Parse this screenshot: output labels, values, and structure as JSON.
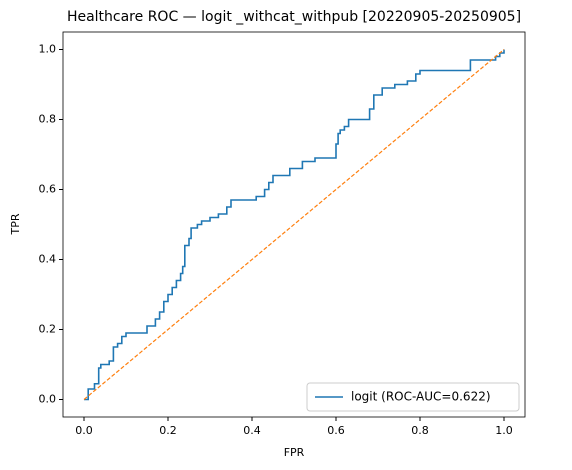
{
  "chart_data": {
    "type": "line",
    "title": "Healthcare ROC — logit _withcat_withpub [20220905-20250905]",
    "x_label": "FPR",
    "y_label": "TPR",
    "xlim": [
      -0.05,
      1.05
    ],
    "ylim": [
      -0.05,
      1.05
    ],
    "xticks": [
      {
        "value": 0,
        "label": "0.0"
      },
      0.2,
      0.4,
      0.6,
      0.8,
      {
        "value": 1,
        "label": "1.0"
      }
    ],
    "yticks": [
      {
        "value": 0,
        "label": "0.0"
      },
      0.2,
      0.4,
      0.6,
      0.8,
      {
        "value": 1,
        "label": "1.0"
      }
    ],
    "legend": "lower right",
    "series": [
      {
        "name": "logit (ROC-AUC=0.622)",
        "color": "#1f77b4",
        "x": [
          0,
          0.01,
          0.01,
          0.025,
          0.025,
          0.035,
          0.035,
          0.04,
          0.04,
          0.06,
          0.06,
          0.07,
          0.07,
          0.08,
          0.08,
          0.09,
          0.09,
          0.1,
          0.1,
          0.15,
          0.15,
          0.17,
          0.17,
          0.18,
          0.18,
          0.19,
          0.19,
          0.2,
          0.2,
          0.21,
          0.21,
          0.22,
          0.22,
          0.23,
          0.23,
          0.235,
          0.235,
          0.24,
          0.24,
          0.25,
          0.25,
          0.255,
          0.255,
          0.27,
          0.27,
          0.28,
          0.28,
          0.3,
          0.3,
          0.32,
          0.32,
          0.34,
          0.34,
          0.35,
          0.35,
          0.41,
          0.41,
          0.43,
          0.43,
          0.44,
          0.44,
          0.45,
          0.45,
          0.49,
          0.49,
          0.52,
          0.52,
          0.55,
          0.55,
          0.6,
          0.6,
          0.605,
          0.605,
          0.61,
          0.61,
          0.62,
          0.62,
          0.63,
          0.63,
          0.68,
          0.68,
          0.69,
          0.69,
          0.71,
          0.71,
          0.74,
          0.74,
          0.77,
          0.77,
          0.79,
          0.79,
          0.8,
          0.8,
          0.92,
          0.92,
          0.98,
          0.98,
          0.99,
          0.99,
          1,
          1
        ],
        "values": [
          0,
          0,
          0.03,
          0.03,
          0.045,
          0.045,
          0.09,
          0.09,
          0.1,
          0.1,
          0.11,
          0.11,
          0.15,
          0.15,
          0.16,
          0.16,
          0.18,
          0.18,
          0.19,
          0.19,
          0.21,
          0.21,
          0.23,
          0.23,
          0.25,
          0.25,
          0.28,
          0.28,
          0.3,
          0.3,
          0.32,
          0.32,
          0.34,
          0.34,
          0.36,
          0.36,
          0.38,
          0.38,
          0.44,
          0.44,
          0.46,
          0.46,
          0.49,
          0.49,
          0.5,
          0.5,
          0.51,
          0.51,
          0.52,
          0.52,
          0.53,
          0.53,
          0.55,
          0.55,
          0.57,
          0.57,
          0.58,
          0.58,
          0.6,
          0.6,
          0.62,
          0.62,
          0.64,
          0.64,
          0.66,
          0.66,
          0.68,
          0.68,
          0.69,
          0.69,
          0.73,
          0.73,
          0.76,
          0.76,
          0.77,
          0.77,
          0.78,
          0.78,
          0.8,
          0.8,
          0.83,
          0.83,
          0.87,
          0.87,
          0.89,
          0.89,
          0.9,
          0.9,
          0.91,
          0.91,
          0.93,
          0.93,
          0.94,
          0.94,
          0.97,
          0.97,
          0.98,
          0.98,
          0.99,
          0.99,
          1
        ]
      },
      {
        "color": "#ff7f0e",
        "dash": true,
        "x": [
          0,
          1
        ],
        "values": [
          0,
          1
        ]
      }
    ]
  }
}
